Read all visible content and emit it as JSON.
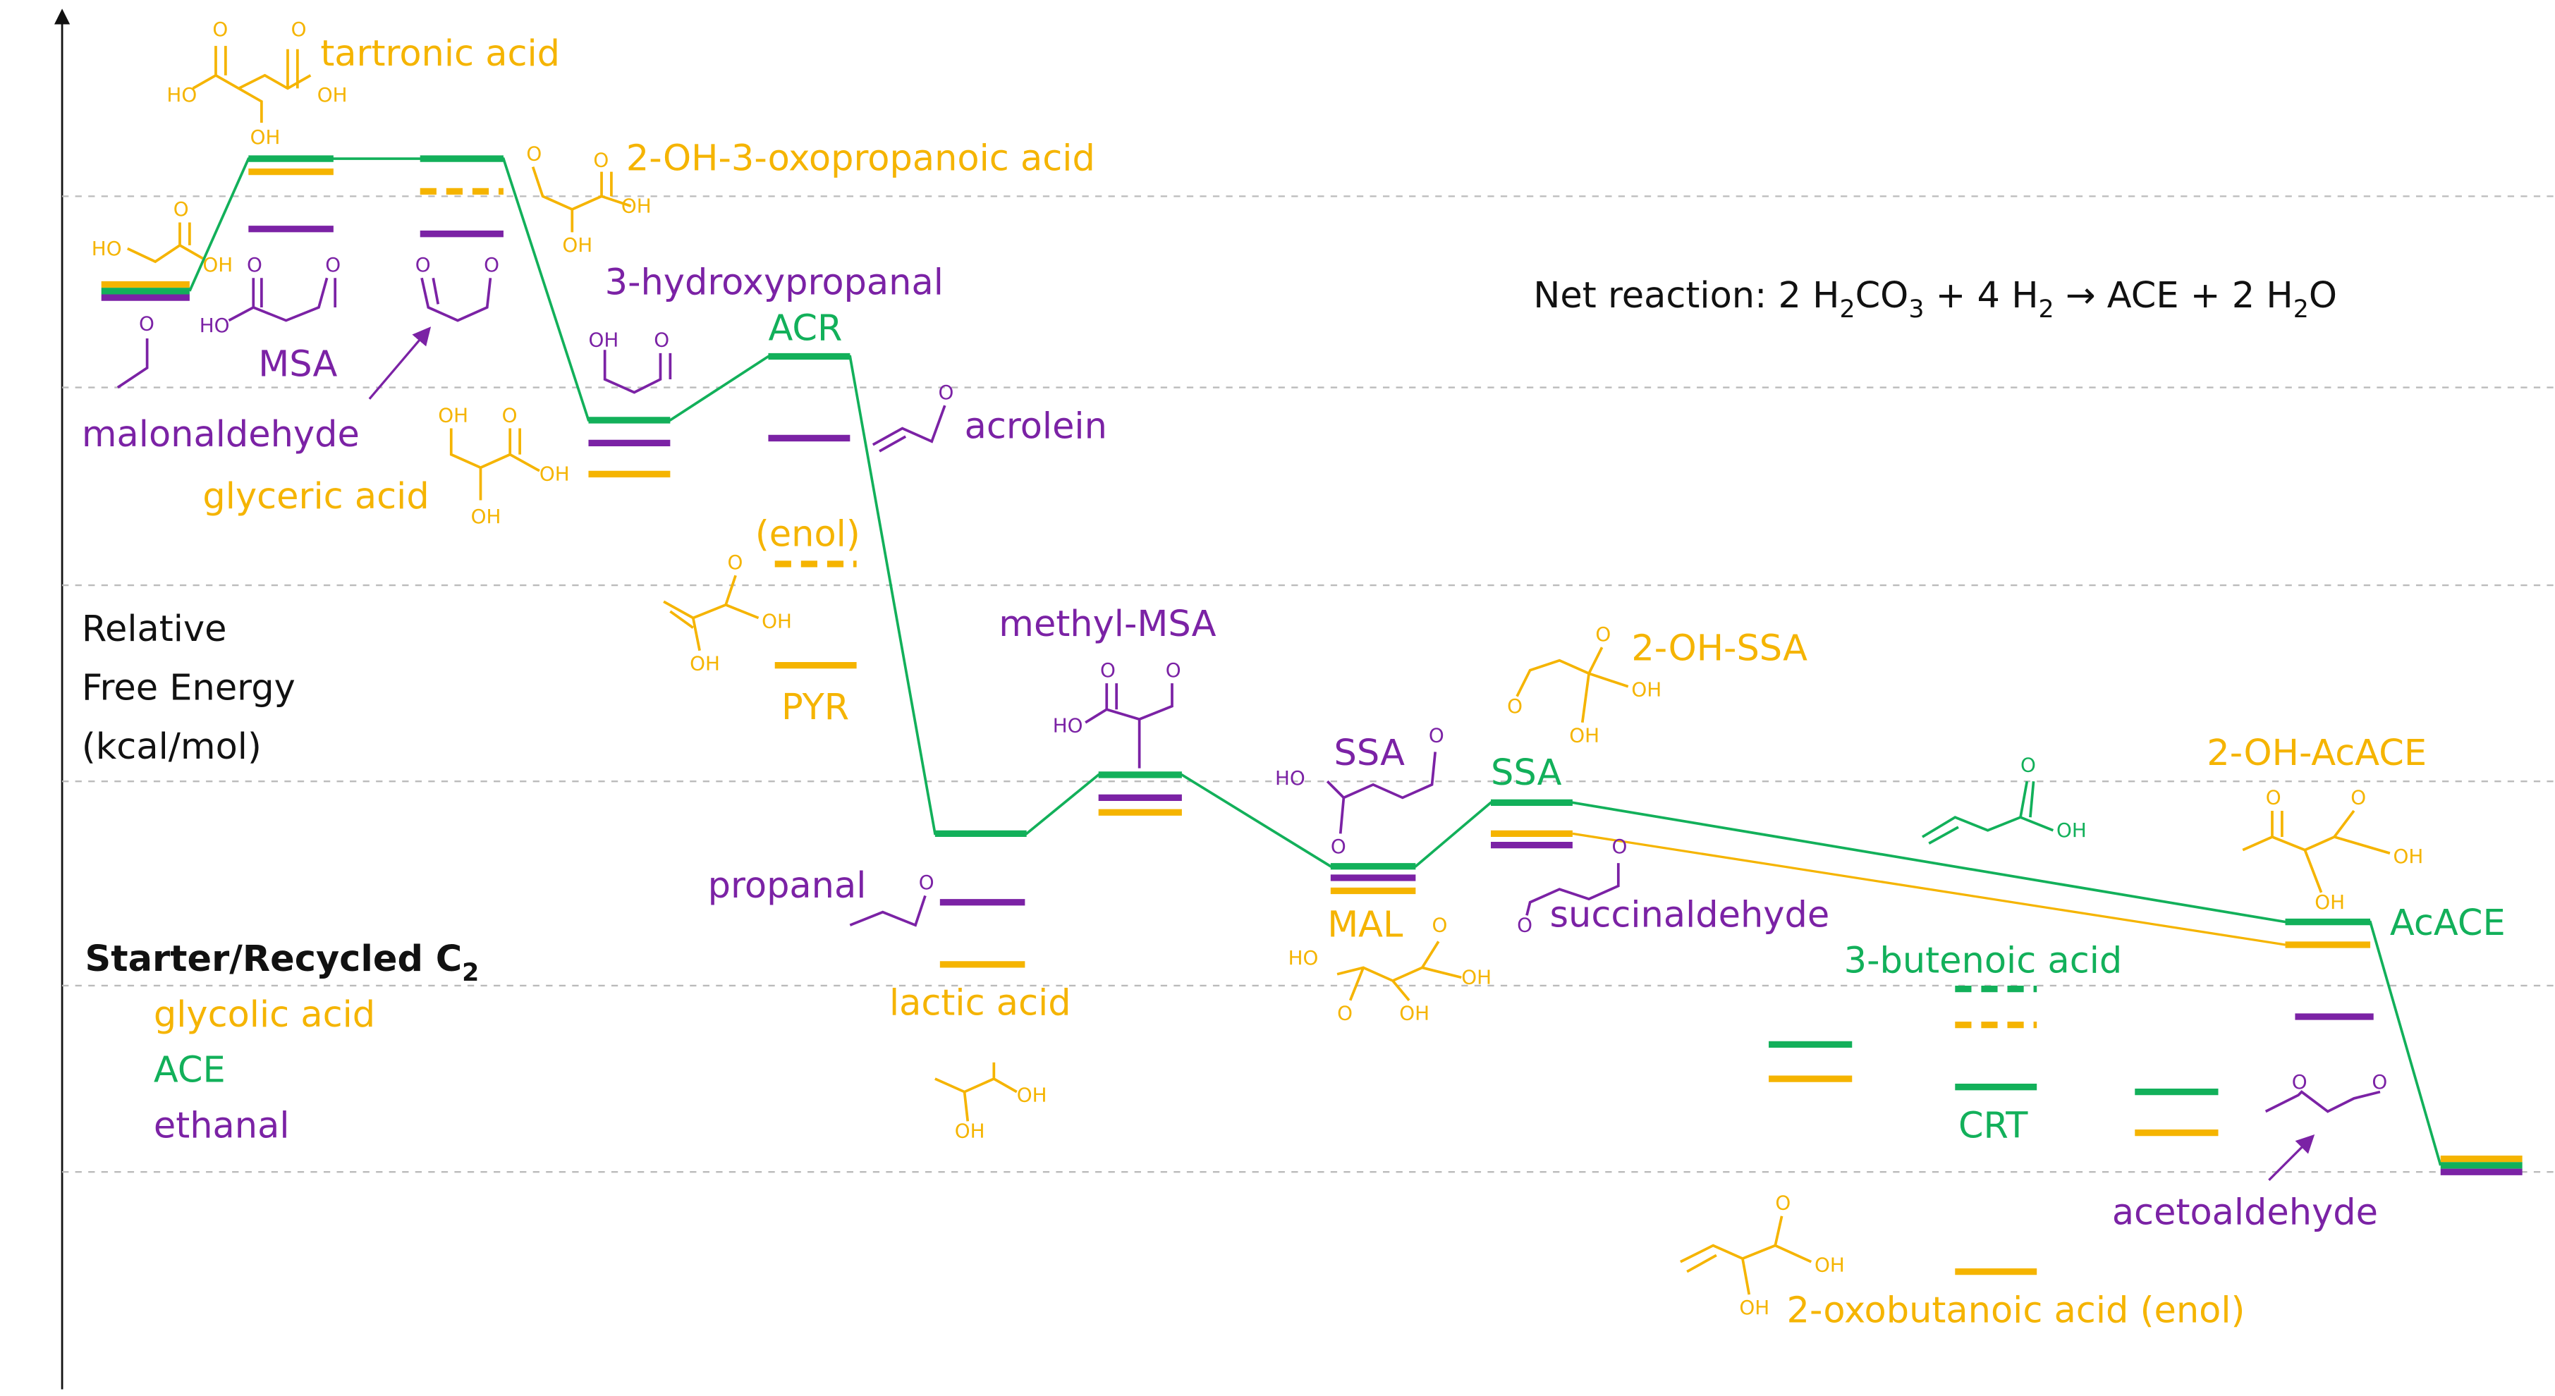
{
  "axis_label": [
    "Relative",
    "Free Energy",
    "(kcal/mol)"
  ],
  "net_reaction": [
    "Net reaction: 2 H",
    "2",
    "CO",
    "3",
    " + 4 H",
    "2",
    " → ACE + 2 H",
    "2",
    "O"
  ],
  "legend": {
    "title": [
      "Starter/Recycled C",
      "2"
    ],
    "items": [
      "glycolic acid",
      "ACE",
      "ethanal"
    ]
  },
  "species": [
    "tartronic acid",
    "2-OH-3-oxopropanoic acid",
    "3-hydroxypropanal",
    "MSA",
    "malonaldehyde",
    "glyceric acid",
    "ACR",
    "acrolein",
    "(enol)",
    "PYR",
    "methyl-MSA",
    "propanal",
    "lactic acid",
    "SSA",
    "MAL",
    "SSA",
    "2-OH-SSA",
    "succinaldehyde",
    "3-butenoic acid",
    "CRT",
    "2-OH-AcACE",
    "AcACE",
    "acetoaldehyde",
    "2-oxobutanoic acid (enol)"
  ],
  "atoms": [
    "O",
    "O",
    "HO",
    "OH",
    "OH",
    "HO",
    "O",
    "OH",
    "O",
    "HO",
    "O",
    "O",
    "O",
    "O",
    "O",
    "O",
    "OH",
    "OH",
    "OH",
    "O",
    "OH",
    "OH",
    "OH",
    "O",
    "O",
    "O",
    "OH",
    "OH",
    "O",
    "O",
    "HO",
    "O",
    "OH",
    "OH",
    "HO",
    "O",
    "O",
    "HO",
    "OH",
    "O",
    "O",
    "OH",
    "O",
    "O",
    "OH",
    "OH",
    "O",
    "O",
    "O",
    "OH",
    "O",
    "O",
    "OH",
    "OH",
    "O",
    "O",
    "O",
    "OH",
    "OH"
  ]
}
